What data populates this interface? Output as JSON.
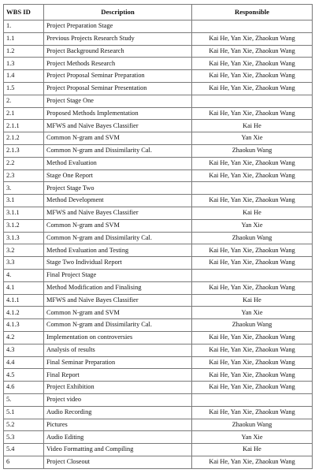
{
  "headers": {
    "id": "WBS ID",
    "description": "Description",
    "responsible": "Responsible"
  },
  "rows": [
    {
      "id": "1.",
      "desc": "Project Preparation Stage",
      "resp": ""
    },
    {
      "id": "1.1",
      "desc": "Previous Projects Research Study",
      "resp": "Kai He, Yan Xie, Zhaokun Wang"
    },
    {
      "id": "1.2",
      "desc": "Project Background Research",
      "resp": "Kai He, Yan Xie, Zhaokun Wang"
    },
    {
      "id": "1.3",
      "desc": "Project Methods Research",
      "resp": "Kai He, Yan Xie, Zhaokun Wang"
    },
    {
      "id": "1.4",
      "desc": "Project Proposal Seminar Preparation",
      "resp": "Kai He, Yan Xie, Zhaokun Wang"
    },
    {
      "id": "1.5",
      "desc": "Project Proposal Seminar Presentation",
      "resp": "Kai He, Yan Xie, Zhaokun Wang"
    },
    {
      "id": "2.",
      "desc": "Project Stage One",
      "resp": ""
    },
    {
      "id": "2.1",
      "desc": "Proposed Methods Implementation",
      "resp": "Kai He, Yan Xie, Zhaokun Wang"
    },
    {
      "id": "2.1.1",
      "desc": "MFWS and Naïve Bayes Classifier",
      "resp": "Kai He"
    },
    {
      "id": "2.1.2",
      "desc": "Common N-gram and SVM",
      "resp": "Yan Xie"
    },
    {
      "id": "2.1.3",
      "desc": "Common N-gram and Dissimilarity Cal.",
      "resp": "Zhaokun Wang"
    },
    {
      "id": "2.2",
      "desc": "Method Evaluation",
      "resp": "Kai He, Yan Xie, Zhaokun Wang"
    },
    {
      "id": "2.3",
      "desc": "Stage One Report",
      "resp": "Kai He, Yan Xie, Zhaokun Wang"
    },
    {
      "id": "3.",
      "desc": "Project Stage Two",
      "resp": ""
    },
    {
      "id": "3.1",
      "desc": "Method Development",
      "resp": "Kai He, Yan Xie, Zhaokun Wang"
    },
    {
      "id": "3.1.1",
      "desc": "MFWS and Naïve Bayes Classifier",
      "resp": "Kai He"
    },
    {
      "id": "3.1.2",
      "desc": "Common N-gram and SVM",
      "resp": "Yan Xie"
    },
    {
      "id": "3.1.3",
      "desc": "Common N-gram and Dissimilarity Cal.",
      "resp": "Zhaokun Wang"
    },
    {
      "id": "3.2",
      "desc": "Method Evaluation and Testing",
      "resp": "Kai He, Yan Xie, Zhaokun Wang"
    },
    {
      "id": "3.3",
      "desc": "Stage Two Individual Report",
      "resp": "Kai He, Yan Xie, Zhaokun Wang"
    },
    {
      "id": "4.",
      "desc": "Final Project Stage",
      "resp": ""
    },
    {
      "id": "4.1",
      "desc": "Method Modification and Finalising",
      "resp": "Kai He, Yan Xie, Zhaokun Wang"
    },
    {
      "id": "4.1.1",
      "desc": "MFWS and Naïve Bayes Classifier",
      "resp": "Kai He"
    },
    {
      "id": "4.1.2",
      "desc": "Common N-gram and SVM",
      "resp": "Yan Xie"
    },
    {
      "id": "4.1.3",
      "desc": "Common N-gram and Dissimilarity Cal.",
      "resp": "Zhaokun Wang"
    },
    {
      "id": "4.2",
      "desc": "Implementation on controversies",
      "resp": "Kai He, Yan Xie, Zhaokun Wang"
    },
    {
      "id": "4.3",
      "desc": "Analysis of results",
      "resp": "Kai He, Yan Xie, Zhaokun Wang"
    },
    {
      "id": "4.4",
      "desc": "Final Seminar Preparation",
      "resp": "Kai He, Yan Xie, Zhaokun Wang"
    },
    {
      "id": "4.5",
      "desc": "Final Report",
      "resp": "Kai He, Yan Xie, Zhaokun Wang"
    },
    {
      "id": "4.6",
      "desc": "Project Exhibition",
      "resp": "Kai He, Yan Xie, Zhaokun Wang"
    },
    {
      "id": "5.",
      "desc": "Project video",
      "resp": ""
    },
    {
      "id": "5.1",
      "desc": "Audio Recording",
      "resp": "Kai He, Yan Xie, Zhaokun Wang"
    },
    {
      "id": "5.2",
      "desc": "Pictures",
      "resp": "Zhaokun Wang"
    },
    {
      "id": "5.3",
      "desc": "Audio Editing",
      "resp": "Yan Xie"
    },
    {
      "id": "5.4",
      "desc": "Video Formatting and Compiling",
      "resp": "Kai He"
    },
    {
      "id": "6",
      "desc": "Project Closeout",
      "resp": "Kai He, Yan Xie, Zhaokun Wang"
    }
  ]
}
